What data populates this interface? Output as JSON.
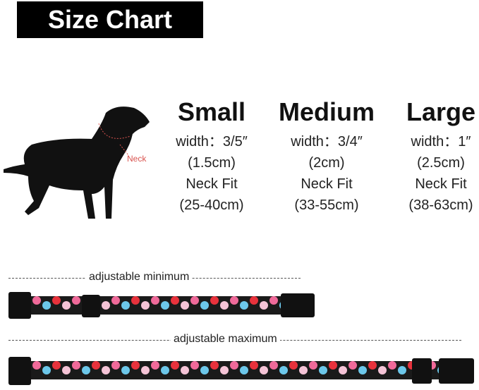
{
  "title": "Size Chart",
  "dog": {
    "neck_label": "Neck"
  },
  "sizes": [
    {
      "name": "Small",
      "width": "width：3/5″",
      "width_cm": "(1.5cm)",
      "neck_label": "Neck Fit",
      "neck_range": "(25-40cm)"
    },
    {
      "name": "Medium",
      "width": "width：3/4″",
      "width_cm": "(2cm)",
      "neck_label": "Neck Fit",
      "neck_range": "(33-55cm)"
    },
    {
      "name": "Large",
      "width": "width：1″",
      "width_cm": "(2.5cm)",
      "neck_label": "Neck Fit",
      "neck_range": "(38-63cm)"
    }
  ],
  "collars": {
    "min_label": "adjustable minimum",
    "max_label": "adjustable maximum"
  },
  "colors": {
    "flower_pink": "#f06a9a",
    "flower_blue": "#6cc7ea",
    "flower_red": "#e8323c",
    "collar_bg": "#1a1a1a"
  }
}
